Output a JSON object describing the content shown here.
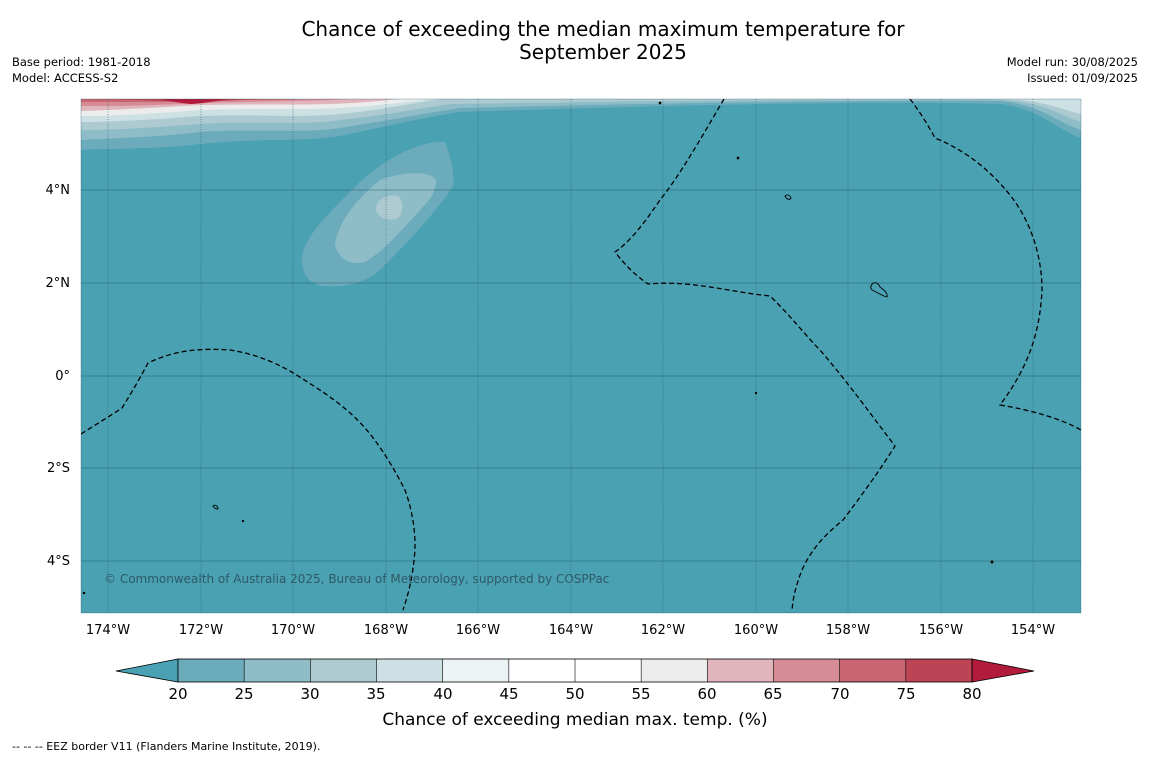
{
  "title_line1": "Chance of exceeding the median maximum temperature for",
  "title_line2": "September 2025",
  "base_period": "Base period: 1981-2018",
  "model": "Model: ACCESS-S2",
  "model_run": "Model run: 30/08/2025",
  "issued": "Issued: 01/09/2025",
  "copyright": "© Commonwealth of Australia 2025, Bureau of Meteorology, supported by COSPPac",
  "lat_labels": [
    "4°N",
    "2°N",
    "0°",
    "2°S",
    "4°S"
  ],
  "lon_labels": [
    "174°W",
    "172°W",
    "170°W",
    "168°W",
    "166°W",
    "164°W",
    "162°W",
    "160°W",
    "158°W",
    "156°W",
    "154°W"
  ],
  "colorbar": {
    "ticks": [
      "20",
      "25",
      "30",
      "35",
      "40",
      "45",
      "50",
      "55",
      "60",
      "65",
      "70",
      "75",
      "80"
    ],
    "colors": [
      "#4aa1b3",
      "#6babbb",
      "#8ebdc8",
      "#adcad0",
      "#cde0e3",
      "#ebf3f4",
      "#ffffff",
      "#ffffff",
      "#ececec",
      "#e0b5bb",
      "#d68c95",
      "#c96471",
      "#bd4455",
      "#b21b3c"
    ],
    "label": "Chance of exceeding median max. temp. (%)"
  },
  "footnote": "--  --  -- EEZ border V11 (Flanders Marine Institute, 2019).",
  "colors": {
    "ocean_base": "#49a1b2",
    "grid": "#1f5563"
  }
}
